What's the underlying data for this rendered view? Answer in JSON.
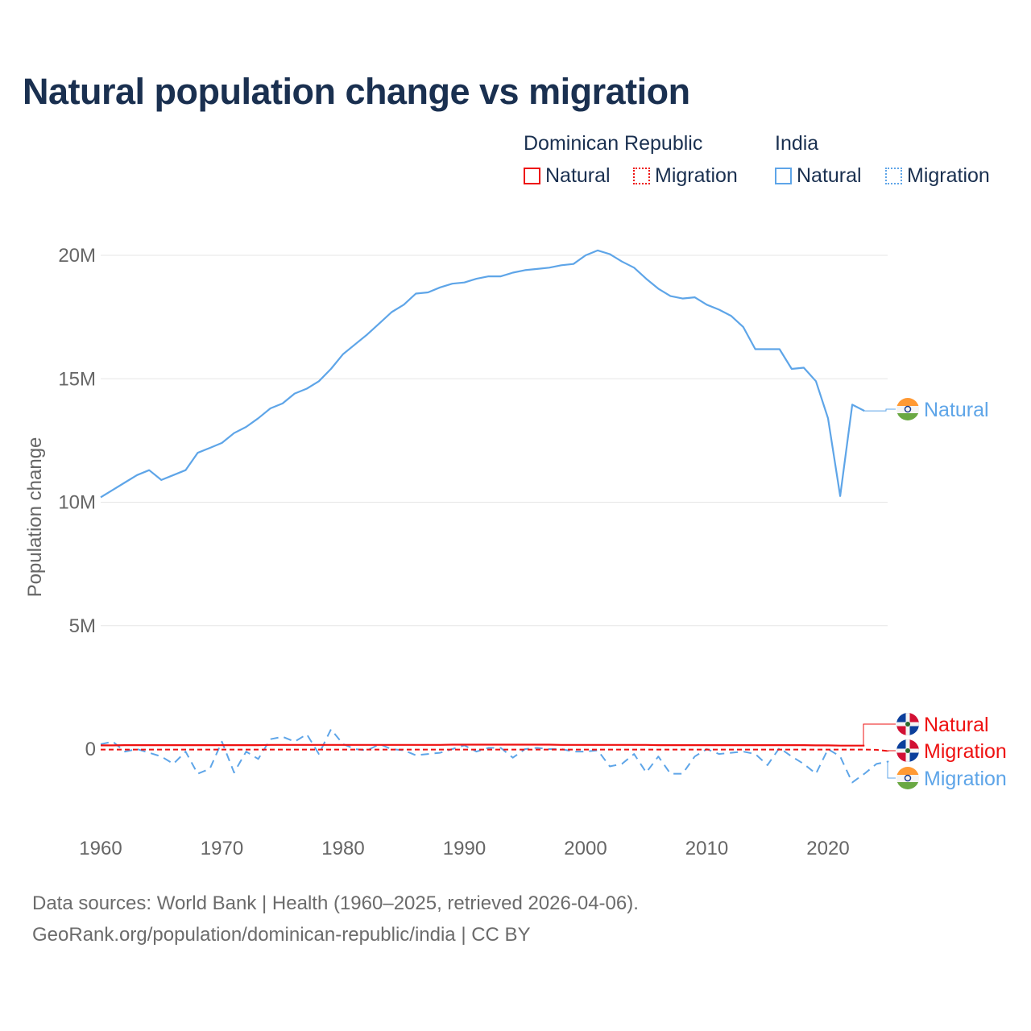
{
  "title": "Natural population change vs migration",
  "legend": {
    "groups": [
      {
        "name": "Dominican Republic",
        "items": [
          {
            "label": "Natural",
            "style": "solid"
          },
          {
            "label": "Migration",
            "style": "dotted"
          }
        ],
        "color": "#ee1111"
      },
      {
        "name": "India",
        "items": [
          {
            "label": "Natural",
            "style": "solid"
          },
          {
            "label": "Migration",
            "style": "dotted"
          }
        ],
        "color": "#5ea5e8"
      }
    ]
  },
  "footer": {
    "line1": "Data sources: World Bank | Health (1960–2025, retrieved 2026-04-06).",
    "line2": "GeoRank.org/population/dominican-republic/india | CC BY"
  },
  "chart_data": {
    "type": "line",
    "title": "Natural population change vs migration",
    "xlabel": "",
    "ylabel": "Population change",
    "xlim": [
      1960,
      2025
    ],
    "ylim": [
      -1.6,
      20.5
    ],
    "y_unit": "millions",
    "x_ticks": [
      1960,
      1970,
      1980,
      1990,
      2000,
      2010,
      2020
    ],
    "y_ticks": [
      {
        "v": 0,
        "label": "0"
      },
      {
        "v": 5,
        "label": "5M"
      },
      {
        "v": 10,
        "label": "10M"
      },
      {
        "v": 15,
        "label": "15M"
      },
      {
        "v": 20,
        "label": "20M"
      }
    ],
    "grid": true,
    "legend_position": "top-right",
    "series": [
      {
        "name": "India Natural",
        "country": "India",
        "label": "Natural",
        "color": "#5ea5e8",
        "dash": "solid",
        "start": 1960,
        "values": [
          10.2,
          10.5,
          10.8,
          11.1,
          11.3,
          10.9,
          11.1,
          11.3,
          12.0,
          12.2,
          12.4,
          12.8,
          13.05,
          13.4,
          13.8,
          14.0,
          14.4,
          14.6,
          14.9,
          15.4,
          16.0,
          16.4,
          16.8,
          17.25,
          17.7,
          18.0,
          18.45,
          18.5,
          18.7,
          18.85,
          18.9,
          19.05,
          19.15,
          19.15,
          19.3,
          19.4,
          19.45,
          19.5,
          19.6,
          19.65,
          20.0,
          20.2,
          20.05,
          19.75,
          19.5,
          19.05,
          18.65,
          18.35,
          18.25,
          18.3,
          18.0,
          17.8,
          17.55,
          17.1,
          16.2,
          16.2,
          16.2,
          15.4,
          15.45,
          14.9,
          13.4,
          10.25,
          13.95,
          13.7
        ]
      },
      {
        "name": "Dominican Republic Natural",
        "country": "Dominican Republic",
        "label": "Natural",
        "color": "#ee1111",
        "dash": "solid",
        "start": 1960,
        "values": [
          0.15,
          0.15,
          0.16,
          0.16,
          0.16,
          0.16,
          0.16,
          0.16,
          0.16,
          0.16,
          0.16,
          0.16,
          0.16,
          0.16,
          0.17,
          0.17,
          0.17,
          0.17,
          0.17,
          0.17,
          0.17,
          0.17,
          0.17,
          0.17,
          0.17,
          0.17,
          0.17,
          0.17,
          0.17,
          0.18,
          0.18,
          0.18,
          0.18,
          0.18,
          0.18,
          0.18,
          0.18,
          0.18,
          0.17,
          0.17,
          0.17,
          0.17,
          0.17,
          0.17,
          0.17,
          0.17,
          0.16,
          0.16,
          0.16,
          0.16,
          0.16,
          0.16,
          0.16,
          0.16,
          0.16,
          0.16,
          0.16,
          0.16,
          0.16,
          0.15,
          0.15,
          0.14,
          0.14,
          0.14
        ]
      },
      {
        "name": "Dominican Republic Migration",
        "country": "Dominican Republic",
        "label": "Migration",
        "color": "#ee1111",
        "dash": "dashed",
        "start": 1960,
        "values": [
          -0.02,
          -0.02,
          -0.02,
          -0.02,
          -0.02,
          -0.02,
          -0.02,
          -0.02,
          -0.02,
          -0.02,
          -0.02,
          -0.02,
          -0.02,
          -0.02,
          -0.02,
          -0.02,
          -0.02,
          -0.02,
          -0.02,
          -0.02,
          -0.02,
          -0.02,
          -0.02,
          -0.02,
          -0.02,
          -0.02,
          -0.02,
          -0.02,
          -0.02,
          -0.02,
          -0.02,
          -0.02,
          -0.02,
          -0.02,
          -0.02,
          -0.02,
          -0.02,
          -0.02,
          -0.02,
          -0.02,
          -0.02,
          -0.02,
          -0.02,
          -0.02,
          -0.02,
          -0.02,
          -0.02,
          -0.02,
          -0.02,
          -0.02,
          -0.02,
          -0.02,
          -0.02,
          -0.02,
          -0.02,
          -0.02,
          -0.02,
          -0.02,
          -0.02,
          -0.02,
          -0.02,
          -0.02,
          -0.02,
          -0.02,
          -0.03,
          -0.08
        ]
      },
      {
        "name": "India Migration",
        "country": "India",
        "label": "Migration",
        "color": "#5ea5e8",
        "dash": "dashed",
        "start": 1960,
        "values": [
          0.2,
          0.3,
          -0.1,
          0,
          -0.15,
          -0.3,
          -0.6,
          -0.1,
          -1.0,
          -0.8,
          0.3,
          -0.95,
          -0.1,
          -0.4,
          0.4,
          0.5,
          0.3,
          0.6,
          -0.2,
          0.8,
          0.2,
          0,
          -0.05,
          0.2,
          0,
          -0.05,
          -0.25,
          -0.2,
          -0.15,
          0,
          0.15,
          -0.1,
          0.05,
          0.05,
          -0.35,
          0,
          0.05,
          0,
          0,
          -0.1,
          -0.1,
          -0.05,
          -0.7,
          -0.6,
          -0.2,
          -0.95,
          -0.3,
          -1.0,
          -1.0,
          -0.3,
          0,
          -0.2,
          -0.15,
          -0.1,
          -0.2,
          -0.65,
          0.05,
          -0.3,
          -0.6,
          -1.0,
          0,
          -0.3,
          -1.35,
          -1.0,
          -0.6,
          -0.5
        ]
      }
    ]
  }
}
